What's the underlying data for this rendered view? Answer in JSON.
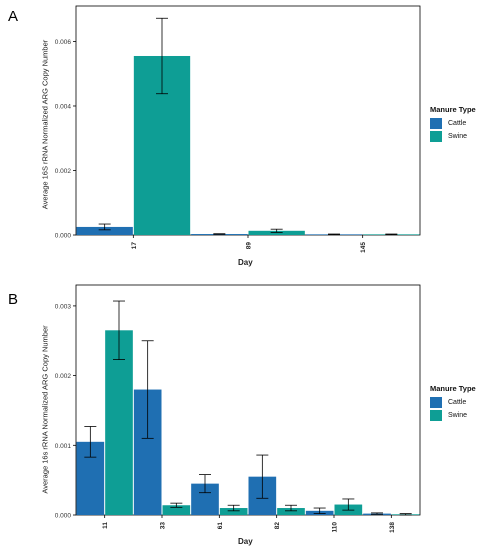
{
  "panels": {
    "a": {
      "letter": "A"
    },
    "b": {
      "letter": "B"
    }
  },
  "colors": {
    "cattle": "#1f6fb2",
    "swine": "#0e9e95"
  },
  "chart_data": [
    {
      "type": "bar",
      "panel": "A",
      "categories": [
        "17",
        "89",
        "145"
      ],
      "series": [
        {
          "name": "Cattle",
          "values": [
            0.00025,
            3e-05,
            2e-05
          ],
          "errors": [
            9e-05,
            1e-05,
            1e-05
          ]
        },
        {
          "name": "Swine",
          "values": [
            0.00555,
            0.00013,
            2e-05
          ],
          "errors": [
            0.00117,
            5e-05,
            1e-05
          ]
        }
      ],
      "yticks": [
        "0.000",
        "0.002",
        "0.004",
        "0.006"
      ],
      "ylim": [
        0,
        0.0071
      ],
      "xlabel": "Day",
      "ylabel": "Average 16S rRNA Normalized ARG Copy Number",
      "legend": {
        "title": "Manure Type",
        "items": [
          "Cattle",
          "Swine"
        ],
        "position": "right"
      }
    },
    {
      "type": "bar",
      "panel": "B",
      "categories": [
        "11",
        "33",
        "61",
        "82",
        "110",
        "138"
      ],
      "series": [
        {
          "name": "Cattle",
          "values": [
            0.00105,
            0.0018,
            0.00045,
            0.00055,
            6e-05,
            2e-05
          ],
          "errors": [
            0.00022,
            0.0007,
            0.00013,
            0.00031,
            4e-05,
            1e-05
          ]
        },
        {
          "name": "Swine",
          "values": [
            0.00265,
            0.00014,
            0.0001,
            0.0001,
            0.00015,
            1e-05
          ],
          "errors": [
            0.00042,
            3e-05,
            4e-05,
            4e-05,
            8e-05,
            1e-05
          ]
        }
      ],
      "yticks": [
        "0.000",
        "0.001",
        "0.002",
        "0.003"
      ],
      "ylim": [
        0,
        0.0033
      ],
      "xlabel": "Day",
      "ylabel": "Average 16s rRNA Normalized ARG Copy Number",
      "legend": {
        "title": "Manure Type",
        "items": [
          "Cattle",
          "Swine"
        ],
        "position": "right"
      }
    }
  ]
}
